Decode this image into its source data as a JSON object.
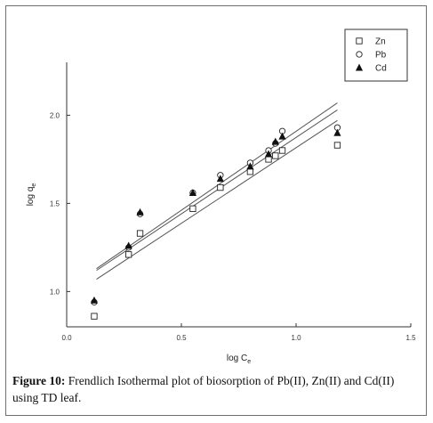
{
  "caption": {
    "label": "Figure 10:",
    "text": " Frendlich Isothermal plot of biosorption of Pb(II), Zn(II) and Cd(II) using TD leaf."
  },
  "chart_data": {
    "type": "scatter",
    "title": "",
    "xlabel_main": "log C",
    "xlabel_sub": "e",
    "ylabel_main": "log q",
    "ylabel_sub": "e",
    "xlim": [
      0.0,
      1.5
    ],
    "ylim": [
      0.8,
      2.3
    ],
    "xticks": [
      0.0,
      0.5,
      1.0,
      1.5
    ],
    "xtick_labels": [
      "0.0",
      "0.5",
      "1.0",
      "1.5"
    ],
    "yticks": [
      1.0,
      1.5,
      2.0
    ],
    "ytick_labels": [
      "1.0",
      "1.5",
      "2.0"
    ],
    "grid": false,
    "legend_position": "top-right",
    "series": [
      {
        "name": "Zn",
        "marker": "open-square",
        "color": "#222222",
        "x": [
          0.12,
          0.27,
          0.32,
          0.55,
          0.67,
          0.8,
          0.88,
          0.91,
          0.94,
          1.18
        ],
        "y": [
          0.86,
          1.21,
          1.33,
          1.47,
          1.59,
          1.68,
          1.75,
          1.77,
          1.8,
          1.83
        ],
        "fit": {
          "x": [
            0.13,
            1.18
          ],
          "y": [
            1.07,
            1.97
          ]
        }
      },
      {
        "name": "Pb",
        "marker": "open-circle",
        "color": "#222222",
        "x": [
          0.12,
          0.27,
          0.32,
          0.55,
          0.67,
          0.8,
          0.88,
          0.91,
          0.94,
          1.18
        ],
        "y": [
          0.94,
          1.25,
          1.44,
          1.56,
          1.66,
          1.73,
          1.8,
          1.84,
          1.91,
          1.93
        ],
        "fit": {
          "x": [
            0.13,
            1.18
          ],
          "y": [
            1.13,
            2.07
          ]
        }
      },
      {
        "name": "Cd",
        "marker": "filled-triangle",
        "color": "#111111",
        "x": [
          0.12,
          0.27,
          0.32,
          0.55,
          0.67,
          0.8,
          0.88,
          0.91,
          0.94,
          1.18
        ],
        "y": [
          0.95,
          1.26,
          1.45,
          1.56,
          1.64,
          1.71,
          1.78,
          1.85,
          1.88,
          1.9
        ],
        "fit": {
          "x": [
            0.13,
            1.18
          ],
          "y": [
            1.12,
            2.03
          ]
        }
      }
    ]
  }
}
